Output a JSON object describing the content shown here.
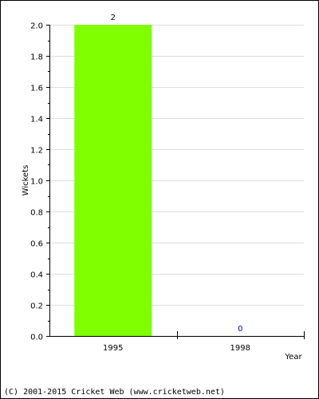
{
  "chart_data": {
    "type": "bar",
    "categories": [
      "1995",
      "1998"
    ],
    "series": [
      {
        "values": [
          2,
          0
        ]
      }
    ],
    "data_labels": [
      "2",
      "0"
    ],
    "xlabel": "Year",
    "ylabel": "Wickets",
    "ylim": [
      0,
      2.0
    ],
    "yticks": [
      "0.0",
      "0.2",
      "0.4",
      "0.6",
      "0.8",
      "1.0",
      "1.2",
      "1.4",
      "1.6",
      "1.8",
      "2.0"
    ],
    "grid": true,
    "colors": {
      "bar": "#7fff00",
      "zero_label": "#0000cc",
      "grid": "#dddddd"
    }
  },
  "footer": {
    "copyright": "(C) 2001-2015 Cricket Web (www.cricketweb.net)"
  }
}
